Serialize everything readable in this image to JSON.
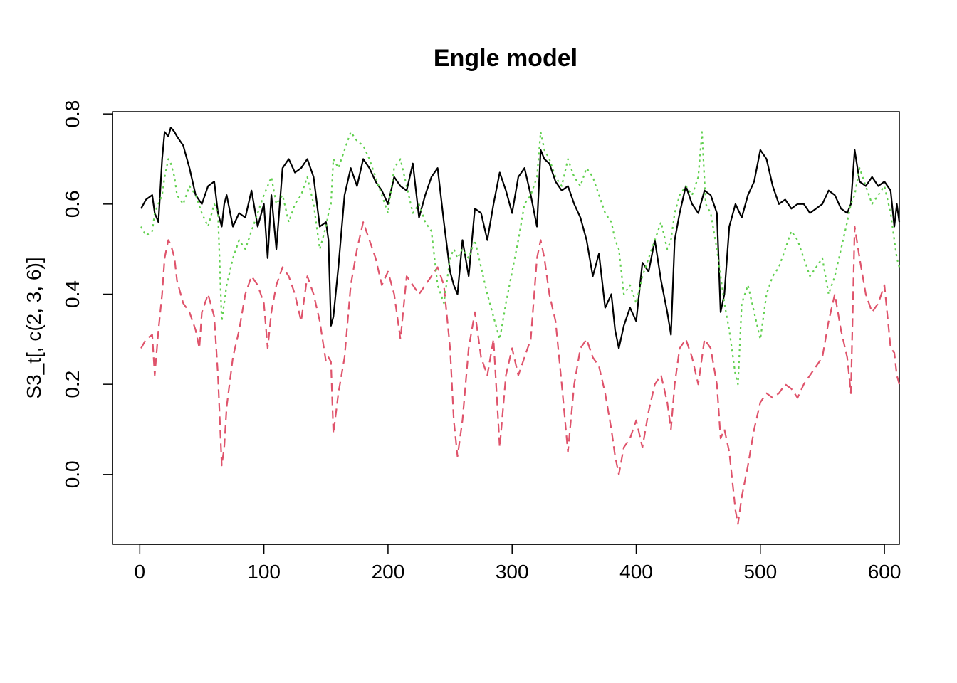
{
  "chart_data": {
    "type": "line",
    "title": "Engle model",
    "xlabel": "",
    "ylabel": "S3_t[, c(2, 3, 6)]",
    "xlim": [
      -22,
      612
    ],
    "ylim": [
      -0.155,
      0.805
    ],
    "xticks": [
      0,
      100,
      200,
      300,
      400,
      500,
      600
    ],
    "yticks": [
      0.0,
      0.2,
      0.4,
      0.6,
      0.8
    ],
    "ytick_labels": [
      "0.0",
      "0.2",
      "0.4",
      "0.6",
      "0.8"
    ],
    "grid": false,
    "legend": "none",
    "series": [
      {
        "color": "#000000",
        "dash": "solid",
        "x": [
          1,
          5,
          10,
          12,
          15,
          18,
          20,
          23,
          25,
          28,
          30,
          35,
          40,
          45,
          50,
          55,
          60,
          63,
          66,
          68,
          70,
          75,
          80,
          85,
          90,
          95,
          100,
          103,
          106,
          110,
          115,
          120,
          125,
          130,
          135,
          140,
          145,
          150,
          152,
          154,
          156,
          160,
          165,
          170,
          175,
          180,
          185,
          190,
          195,
          200,
          205,
          210,
          215,
          220,
          225,
          230,
          235,
          240,
          245,
          250,
          253,
          256,
          260,
          265,
          270,
          275,
          280,
          285,
          290,
          295,
          300,
          305,
          310,
          315,
          320,
          323,
          326,
          330,
          335,
          340,
          345,
          350,
          355,
          360,
          365,
          370,
          375,
          380,
          383,
          386,
          390,
          395,
          400,
          405,
          410,
          415,
          420,
          425,
          428,
          431,
          435,
          440,
          445,
          450,
          455,
          460,
          465,
          468,
          471,
          475,
          480,
          485,
          490,
          495,
          500,
          505,
          510,
          515,
          520,
          525,
          530,
          535,
          540,
          545,
          550,
          555,
          560,
          565,
          570,
          573,
          576,
          580,
          585,
          590,
          595,
          600,
          605,
          608,
          610,
          612
        ],
        "y": [
          0.59,
          0.61,
          0.62,
          0.58,
          0.56,
          0.7,
          0.76,
          0.75,
          0.77,
          0.76,
          0.75,
          0.73,
          0.68,
          0.62,
          0.6,
          0.64,
          0.65,
          0.58,
          0.55,
          0.6,
          0.62,
          0.55,
          0.58,
          0.57,
          0.63,
          0.55,
          0.6,
          0.48,
          0.62,
          0.5,
          0.68,
          0.7,
          0.67,
          0.68,
          0.7,
          0.66,
          0.55,
          0.56,
          0.52,
          0.33,
          0.35,
          0.46,
          0.62,
          0.68,
          0.64,
          0.7,
          0.68,
          0.65,
          0.63,
          0.6,
          0.66,
          0.64,
          0.63,
          0.69,
          0.57,
          0.62,
          0.66,
          0.68,
          0.56,
          0.45,
          0.42,
          0.4,
          0.52,
          0.44,
          0.59,
          0.58,
          0.52,
          0.6,
          0.67,
          0.63,
          0.58,
          0.66,
          0.68,
          0.62,
          0.55,
          0.72,
          0.7,
          0.69,
          0.65,
          0.63,
          0.64,
          0.6,
          0.57,
          0.52,
          0.44,
          0.49,
          0.37,
          0.4,
          0.32,
          0.28,
          0.33,
          0.37,
          0.34,
          0.47,
          0.45,
          0.52,
          0.43,
          0.36,
          0.31,
          0.52,
          0.58,
          0.64,
          0.6,
          0.58,
          0.63,
          0.62,
          0.58,
          0.36,
          0.4,
          0.55,
          0.6,
          0.57,
          0.62,
          0.65,
          0.72,
          0.7,
          0.64,
          0.6,
          0.61,
          0.59,
          0.6,
          0.6,
          0.58,
          0.59,
          0.6,
          0.63,
          0.62,
          0.59,
          0.58,
          0.6,
          0.72,
          0.65,
          0.64,
          0.66,
          0.64,
          0.65,
          0.63,
          0.55,
          0.6,
          0.56
        ]
      },
      {
        "color": "#DF536B",
        "dash": "dashed",
        "x": [
          1,
          5,
          10,
          12,
          15,
          18,
          20,
          23,
          25,
          28,
          30,
          35,
          40,
          45,
          48,
          50,
          55,
          60,
          63,
          66,
          68,
          70,
          75,
          80,
          85,
          90,
          95,
          100,
          103,
          106,
          110,
          115,
          120,
          125,
          130,
          135,
          140,
          145,
          150,
          152,
          154,
          156,
          160,
          165,
          170,
          175,
          180,
          185,
          190,
          195,
          200,
          205,
          210,
          215,
          220,
          225,
          230,
          235,
          240,
          245,
          250,
          253,
          256,
          260,
          265,
          270,
          275,
          280,
          285,
          290,
          295,
          300,
          305,
          310,
          315,
          320,
          323,
          326,
          330,
          335,
          340,
          345,
          350,
          355,
          360,
          365,
          370,
          375,
          380,
          383,
          386,
          390,
          395,
          400,
          405,
          410,
          415,
          420,
          425,
          428,
          431,
          435,
          440,
          445,
          450,
          455,
          460,
          465,
          468,
          471,
          475,
          480,
          482,
          485,
          490,
          495,
          500,
          505,
          510,
          515,
          520,
          525,
          530,
          535,
          540,
          545,
          550,
          555,
          560,
          565,
          570,
          573,
          576,
          580,
          585,
          590,
          595,
          600,
          605,
          608,
          610,
          612
        ],
        "y": [
          0.28,
          0.3,
          0.31,
          0.22,
          0.32,
          0.4,
          0.48,
          0.52,
          0.51,
          0.48,
          0.43,
          0.38,
          0.36,
          0.32,
          0.28,
          0.36,
          0.4,
          0.35,
          0.22,
          0.02,
          0.06,
          0.15,
          0.26,
          0.32,
          0.4,
          0.44,
          0.42,
          0.38,
          0.28,
          0.36,
          0.42,
          0.46,
          0.44,
          0.4,
          0.34,
          0.44,
          0.4,
          0.34,
          0.25,
          0.26,
          0.25,
          0.09,
          0.18,
          0.26,
          0.42,
          0.5,
          0.56,
          0.52,
          0.48,
          0.42,
          0.45,
          0.4,
          0.3,
          0.44,
          0.42,
          0.4,
          0.42,
          0.44,
          0.46,
          0.42,
          0.28,
          0.12,
          0.04,
          0.12,
          0.28,
          0.36,
          0.26,
          0.22,
          0.3,
          0.06,
          0.22,
          0.28,
          0.22,
          0.26,
          0.3,
          0.48,
          0.52,
          0.48,
          0.4,
          0.34,
          0.2,
          0.05,
          0.2,
          0.28,
          0.3,
          0.26,
          0.24,
          0.18,
          0.1,
          0.04,
          0.0,
          0.06,
          0.08,
          0.12,
          0.06,
          0.14,
          0.2,
          0.22,
          0.16,
          0.1,
          0.2,
          0.28,
          0.3,
          0.26,
          0.2,
          0.3,
          0.28,
          0.2,
          0.08,
          0.1,
          0.05,
          -0.08,
          -0.11,
          -0.05,
          0.02,
          0.1,
          0.16,
          0.18,
          0.17,
          0.18,
          0.2,
          0.19,
          0.17,
          0.2,
          0.22,
          0.24,
          0.26,
          0.34,
          0.4,
          0.32,
          0.26,
          0.18,
          0.55,
          0.48,
          0.4,
          0.36,
          0.38,
          0.42,
          0.28,
          0.27,
          0.22,
          0.2
        ]
      },
      {
        "color": "#61D04F",
        "dash": "dotted",
        "x": [
          1,
          5,
          10,
          12,
          15,
          18,
          20,
          23,
          25,
          28,
          30,
          35,
          40,
          45,
          50,
          55,
          60,
          63,
          66,
          68,
          70,
          75,
          80,
          85,
          90,
          95,
          100,
          103,
          106,
          110,
          115,
          120,
          125,
          130,
          135,
          140,
          145,
          150,
          152,
          154,
          156,
          160,
          165,
          170,
          175,
          180,
          185,
          190,
          195,
          200,
          205,
          210,
          215,
          220,
          225,
          230,
          235,
          240,
          245,
          250,
          253,
          256,
          260,
          265,
          270,
          275,
          280,
          285,
          290,
          295,
          300,
          305,
          310,
          315,
          320,
          323,
          326,
          330,
          335,
          340,
          345,
          350,
          355,
          360,
          365,
          370,
          375,
          380,
          383,
          386,
          390,
          395,
          400,
          405,
          410,
          415,
          420,
          425,
          428,
          431,
          435,
          440,
          445,
          450,
          453,
          456,
          460,
          465,
          468,
          471,
          475,
          480,
          482,
          485,
          490,
          495,
          500,
          505,
          510,
          515,
          520,
          525,
          530,
          535,
          540,
          545,
          550,
          555,
          560,
          565,
          570,
          573,
          576,
          580,
          585,
          590,
          595,
          600,
          605,
          608,
          610,
          612
        ],
        "y": [
          0.55,
          0.53,
          0.54,
          0.58,
          0.6,
          0.62,
          0.66,
          0.7,
          0.69,
          0.66,
          0.62,
          0.6,
          0.64,
          0.62,
          0.58,
          0.55,
          0.6,
          0.58,
          0.34,
          0.38,
          0.42,
          0.48,
          0.52,
          0.5,
          0.54,
          0.58,
          0.62,
          0.64,
          0.66,
          0.6,
          0.62,
          0.56,
          0.6,
          0.62,
          0.66,
          0.6,
          0.5,
          0.55,
          0.58,
          0.6,
          0.7,
          0.68,
          0.72,
          0.76,
          0.74,
          0.73,
          0.7,
          0.66,
          0.62,
          0.58,
          0.68,
          0.7,
          0.64,
          0.58,
          0.6,
          0.56,
          0.54,
          0.42,
          0.38,
          0.48,
          0.5,
          0.48,
          0.5,
          0.48,
          0.52,
          0.46,
          0.4,
          0.35,
          0.3,
          0.38,
          0.45,
          0.52,
          0.6,
          0.62,
          0.66,
          0.76,
          0.72,
          0.7,
          0.66,
          0.64,
          0.7,
          0.66,
          0.64,
          0.68,
          0.66,
          0.62,
          0.58,
          0.56,
          0.52,
          0.5,
          0.4,
          0.42,
          0.38,
          0.44,
          0.48,
          0.52,
          0.56,
          0.5,
          0.52,
          0.58,
          0.62,
          0.64,
          0.62,
          0.66,
          0.76,
          0.6,
          0.58,
          0.5,
          0.44,
          0.38,
          0.32,
          0.22,
          0.2,
          0.38,
          0.42,
          0.36,
          0.3,
          0.4,
          0.44,
          0.46,
          0.5,
          0.54,
          0.52,
          0.48,
          0.44,
          0.46,
          0.48,
          0.4,
          0.44,
          0.5,
          0.56,
          0.6,
          0.62,
          0.68,
          0.64,
          0.6,
          0.62,
          0.64,
          0.58,
          0.52,
          0.48,
          0.46
        ]
      }
    ]
  }
}
